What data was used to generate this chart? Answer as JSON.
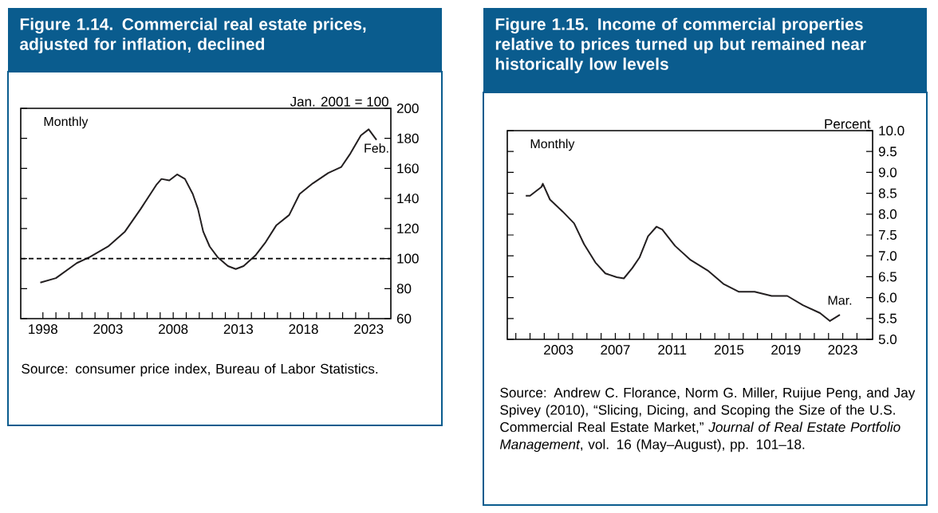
{
  "chart_data": [
    {
      "type": "line",
      "title": "Figure 1.14. Commercial real estate prices, adjusted for inflation, declined",
      "ylabel": "Jan. 2001 = 100",
      "x": [
        1997.8,
        1999.0,
        2000.6,
        2001.6,
        2003.0,
        2004.3,
        2005.5,
        2006.7,
        2007.1,
        2007.7,
        2008.3,
        2008.9,
        2009.5,
        2009.9,
        2010.3,
        2010.8,
        2011.4,
        2012.2,
        2012.8,
        2013.4,
        2014.3,
        2015.1,
        2015.9,
        2016.9,
        2017.7,
        2018.7,
        2019.9,
        2020.9,
        2021.6,
        2022.4,
        2023.0,
        2023.6
      ],
      "series": [
        {
          "color": "#231f20",
          "values": [
            84,
            87,
            97,
            101,
            108,
            118,
            133,
            149,
            153,
            152,
            156,
            153,
            143,
            133,
            118,
            108,
            101,
            95,
            93,
            95,
            102,
            111,
            122,
            129,
            143,
            150,
            157,
            161,
            170,
            182,
            186,
            179
          ]
        }
      ],
      "xlim": [
        1996.3,
        2024.7
      ],
      "ylim": [
        60,
        200
      ],
      "xticks": [
        {
          "value": 1998,
          "label": "1998"
        },
        {
          "value": 1999,
          "label": null
        },
        {
          "value": 2000,
          "label": null
        },
        {
          "value": 2001,
          "label": null
        },
        {
          "value": 2002,
          "label": null
        },
        {
          "value": 2003,
          "label": "2003"
        },
        {
          "value": 2004,
          "label": null
        },
        {
          "value": 2005,
          "label": null
        },
        {
          "value": 2006,
          "label": null
        },
        {
          "value": 2007,
          "label": null
        },
        {
          "value": 2008,
          "label": "2008"
        },
        {
          "value": 2009,
          "label": null
        },
        {
          "value": 2010,
          "label": null
        },
        {
          "value": 2011,
          "label": null
        },
        {
          "value": 2012,
          "label": null
        },
        {
          "value": 2013,
          "label": "2013"
        },
        {
          "value": 2014,
          "label": null
        },
        {
          "value": 2015,
          "label": null
        },
        {
          "value": 2016,
          "label": null
        },
        {
          "value": 2017,
          "label": null
        },
        {
          "value": 2018,
          "label": "2018"
        },
        {
          "value": 2019,
          "label": null
        },
        {
          "value": 2020,
          "label": null
        },
        {
          "value": 2021,
          "label": null
        },
        {
          "value": 2022,
          "label": null
        },
        {
          "value": 2023,
          "label": "2023"
        }
      ],
      "yticks": [
        60,
        80,
        100,
        120,
        140,
        160,
        180,
        200
      ],
      "ref_lines": [
        {
          "axis": "y",
          "value": 100,
          "line_style": "dashed"
        }
      ],
      "annotations": [
        "Monthly",
        {
          "text": "Feb.",
          "x": 2023.6,
          "y": 179
        },
        "Source: consumer price index, Bureau of Labor Statistics."
      ]
    },
    {
      "type": "line",
      "title": "Figure 1.15. Income of commercial properties relative to prices turned up but remained near historically low levels",
      "ylabel": "Percent",
      "x": [
        2000.7,
        2001.0,
        2001.8,
        2001.9,
        2002.4,
        2003.3,
        2004.1,
        2004.8,
        2005.6,
        2006.3,
        2007.1,
        2007.6,
        2008.2,
        2008.7,
        2009.3,
        2009.9,
        2010.3,
        2011.2,
        2012.3,
        2013.5,
        2014.6,
        2015.7,
        2016.8,
        2018.0,
        2019.1,
        2020.2,
        2021.4,
        2022.1,
        2022.8
      ],
      "series": [
        {
          "color": "#231f20",
          "values": [
            8.44,
            8.44,
            8.65,
            8.73,
            8.35,
            8.06,
            7.78,
            7.28,
            6.84,
            6.58,
            6.49,
            6.46,
            6.71,
            6.96,
            7.47,
            7.7,
            7.63,
            7.24,
            6.9,
            6.65,
            6.33,
            6.14,
            6.14,
            6.04,
            6.04,
            5.82,
            5.63,
            5.44,
            5.59
          ]
        }
      ],
      "xlim": [
        1999.4,
        2025.1
      ],
      "ylim": [
        5,
        10
      ],
      "xticks": [
        {
          "value": 2000,
          "label": null
        },
        {
          "value": 2001,
          "label": null
        },
        {
          "value": 2002,
          "label": null
        },
        {
          "value": 2003,
          "label": "2003"
        },
        {
          "value": 2004,
          "label": null
        },
        {
          "value": 2005,
          "label": null
        },
        {
          "value": 2006,
          "label": null
        },
        {
          "value": 2007,
          "label": "2007"
        },
        {
          "value": 2008,
          "label": null
        },
        {
          "value": 2009,
          "label": null
        },
        {
          "value": 2010,
          "label": null
        },
        {
          "value": 2011,
          "label": "2011"
        },
        {
          "value": 2012,
          "label": null
        },
        {
          "value": 2013,
          "label": null
        },
        {
          "value": 2014,
          "label": null
        },
        {
          "value": 2015,
          "label": "2015"
        },
        {
          "value": 2016,
          "label": null
        },
        {
          "value": 2017,
          "label": null
        },
        {
          "value": 2018,
          "label": null
        },
        {
          "value": 2019,
          "label": "2019"
        },
        {
          "value": 2020,
          "label": null
        },
        {
          "value": 2021,
          "label": null
        },
        {
          "value": 2022,
          "label": null
        },
        {
          "value": 2023,
          "label": "2023"
        },
        {
          "value": 2024,
          "label": null
        }
      ],
      "yticks": [
        {
          "value": 5,
          "label": "5.0"
        },
        {
          "value": 5.5,
          "label": "5.5"
        },
        {
          "value": 6,
          "label": "6.0"
        },
        {
          "value": 6.5,
          "label": "6.5"
        },
        {
          "value": 7,
          "label": "7.0"
        },
        {
          "value": 7.5,
          "label": "7.5"
        },
        {
          "value": 8,
          "label": "8.0"
        },
        {
          "value": 8.5,
          "label": "8.5"
        },
        {
          "value": 9,
          "label": "9.0"
        },
        {
          "value": 9.5,
          "label": "9.5"
        },
        {
          "value": 10,
          "label": "10.0"
        }
      ],
      "annotations": [
        "Monthly",
        {
          "text": "Mar.",
          "x": 2022.8,
          "y": 5.59
        },
        "Source: Andrew C. Florance, Norm G. Miller, Ruijue Peng, and Jay Spivey (2010), “Slicing, Dicing, and Scoping the Size of the U.S. Commercial Real Estate Market,” *Journal of Real Estate Portfolio Management*, vol. 16 (May–August), pp. 101–18."
      ]
    }
  ]
}
